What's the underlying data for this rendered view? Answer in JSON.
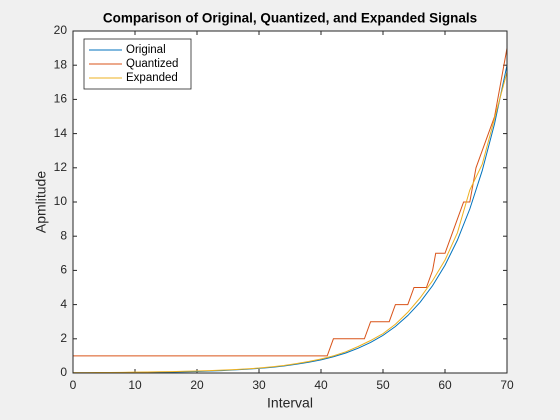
{
  "chart_data": {
    "type": "line",
    "title": "Comparison of Original, Quantized, and Expanded Signals",
    "x_label": "Interval",
    "y_label": "Apmlitude",
    "xlim": [
      0,
      70
    ],
    "xticks": [
      0,
      10,
      20,
      30,
      40,
      50,
      60,
      70
    ],
    "ylim": [
      0,
      20
    ],
    "yticks": [
      0,
      2,
      4,
      6,
      8,
      10,
      12,
      14,
      16,
      18,
      20
    ],
    "legend": "upper-left",
    "series": [
      {
        "name": "Original",
        "color": "#0072bd",
        "x": [
          0,
          2,
          4,
          6,
          8,
          10,
          12,
          14,
          16,
          18,
          20,
          22,
          24,
          26,
          28,
          30,
          32,
          34,
          36,
          38,
          40,
          42,
          44,
          46,
          48,
          50,
          52,
          54,
          56,
          58,
          60,
          62,
          64,
          66,
          68,
          70
        ],
        "values": [
          0.01,
          0.01,
          0.01,
          0.02,
          0.02,
          0.03,
          0.04,
          0.05,
          0.06,
          0.07,
          0.09,
          0.12,
          0.14,
          0.18,
          0.22,
          0.27,
          0.33,
          0.41,
          0.51,
          0.63,
          0.77,
          0.95,
          1.17,
          1.45,
          1.79,
          2.2,
          2.72,
          3.36,
          4.14,
          5.11,
          6.3,
          7.77,
          9.59,
          11.83,
          14.59,
          18
        ]
      },
      {
        "name": "Quantized",
        "color": "#d95319",
        "x": [
          0,
          41,
          42,
          47,
          48,
          51,
          52,
          54,
          55,
          57,
          58,
          58.5,
          60,
          61,
          62,
          63,
          64,
          65,
          66,
          67,
          68,
          69,
          70
        ],
        "values": [
          1,
          1,
          2,
          2,
          3,
          3,
          4,
          4,
          5,
          5,
          6,
          7,
          7,
          8,
          9,
          10,
          10,
          12,
          13,
          14,
          15,
          17,
          19
        ]
      },
      {
        "name": "Expanded",
        "color": "#edb120",
        "x": [
          0,
          2,
          4,
          6,
          8,
          10,
          12,
          14,
          16,
          18,
          20,
          22,
          24,
          26,
          28,
          30,
          32,
          34,
          36,
          38,
          40,
          42,
          44,
          46,
          48,
          50,
          52,
          54,
          56,
          58,
          60,
          62,
          64,
          66,
          68,
          70
        ],
        "values": [
          0.02,
          0.02,
          0.03,
          0.03,
          0.04,
          0.05,
          0.06,
          0.07,
          0.08,
          0.1,
          0.12,
          0.14,
          0.17,
          0.2,
          0.24,
          0.29,
          0.36,
          0.44,
          0.55,
          0.67,
          0.82,
          1.0,
          1.24,
          1.55,
          1.9,
          2.3,
          2.85,
          3.55,
          4.4,
          5.4,
          6.6,
          8.2,
          10.7,
          12.2,
          14.9,
          17.6
        ]
      }
    ]
  }
}
